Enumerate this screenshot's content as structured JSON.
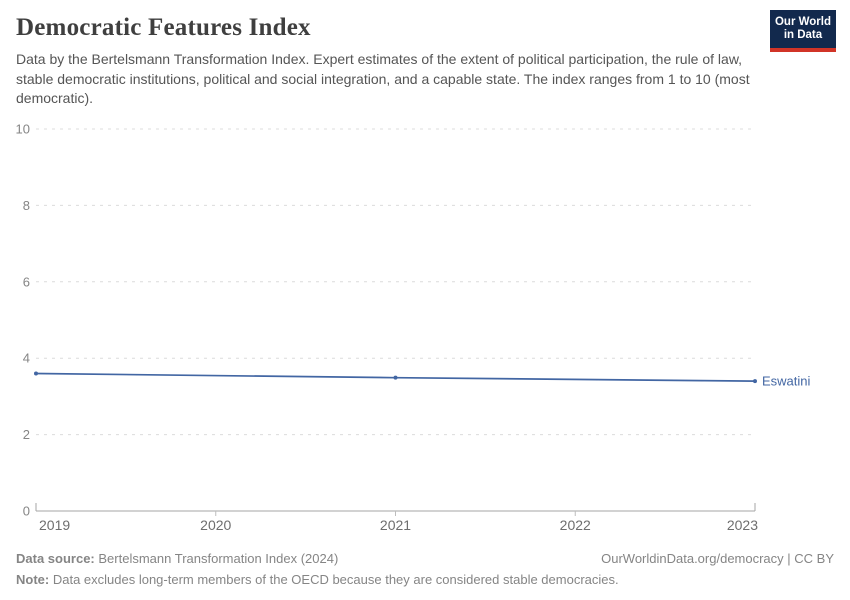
{
  "header": {
    "title": "Democratic Features Index",
    "subtitle": "Data by the Bertelsmann Transformation Index. Expert estimates of the extent of political participation, the rule of law, stable democratic institutions, political and social integration, and a capable state. The index ranges from 1 to 10 (most democratic).",
    "logo": {
      "line1": "Our World",
      "line2": "in Data",
      "bg_color": "#12294d",
      "accent_color": "#d13427"
    }
  },
  "chart_data": {
    "type": "line",
    "title": "Democratic Features Index",
    "x": [
      2019,
      2021,
      2023
    ],
    "series": [
      {
        "name": "Eswatini",
        "values": [
          3.6,
          3.49,
          3.4
        ],
        "color": "#4266a3"
      }
    ],
    "xlabel": "",
    "ylabel": "",
    "xlim": [
      2019,
      2023
    ],
    "ylim": [
      0,
      10
    ],
    "yticks": [
      0,
      2,
      4,
      6,
      8,
      10
    ],
    "xticks": [
      2019,
      2020,
      2021,
      2022,
      2023
    ],
    "grid": "horizontal dashed gridlines",
    "legend": "inline label at end of line"
  },
  "footer": {
    "source_label": "Data source:",
    "source_text": "Bertelsmann Transformation Index (2024)",
    "attribution": "OurWorldinData.org/democracy | CC BY",
    "note_label": "Note:",
    "note_text": "Data excludes long-term members of the OECD because they are considered stable democracies."
  }
}
